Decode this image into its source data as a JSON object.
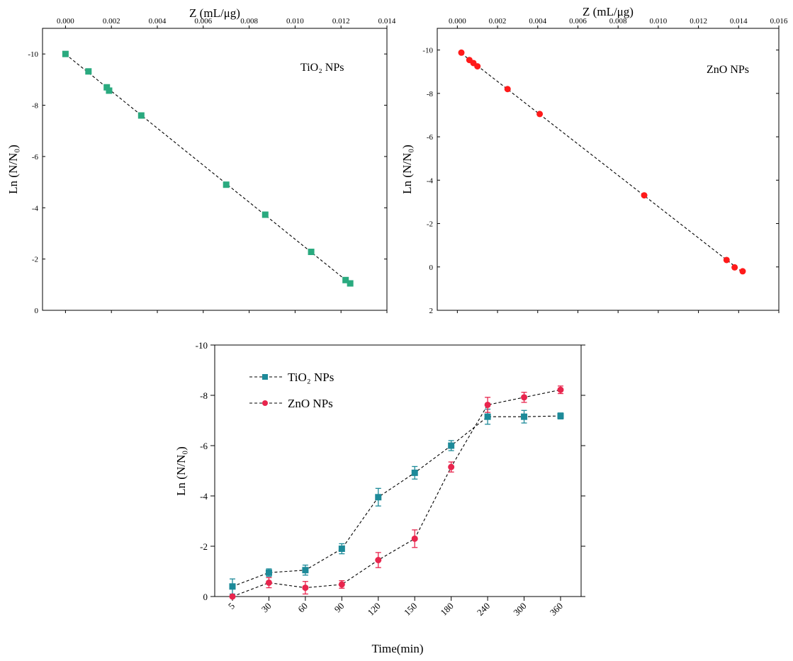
{
  "chart_data": [
    {
      "id": "tio2_scatter",
      "type": "scatter",
      "title": "",
      "panel_label": "TiO₂ NPs",
      "xlabel": "Z (mL/μg)",
      "ylabel": "Ln (N/N₀)",
      "x_axis_position": "top",
      "xlim": [
        -0.001,
        0.014
      ],
      "ylim": [
        0,
        -11
      ],
      "x_ticks": [
        0.0,
        0.002,
        0.004,
        0.006,
        0.008,
        0.01,
        0.012,
        0.014
      ],
      "x_tick_labels": [
        "0.000",
        "0.002",
        "0.004",
        "0.006",
        "0.008",
        "0.010",
        "0.012",
        "0.014"
      ],
      "y_ticks": [
        0,
        -2,
        -4,
        -6,
        -8,
        -10
      ],
      "y_tick_labels": [
        "0",
        "-2",
        "-4",
        "-6",
        "-8",
        "-10"
      ],
      "marker": "square",
      "color": "#2AAA7F",
      "fit_line": true,
      "x": [
        0.0,
        0.001,
        0.0018,
        0.0019,
        0.0033,
        0.007,
        0.0087,
        0.0107,
        0.0122,
        0.0124
      ],
      "y": [
        -10.0,
        -9.32,
        -8.7,
        -8.57,
        -7.6,
        -4.9,
        -3.73,
        -2.28,
        -1.18,
        -1.05
      ]
    },
    {
      "id": "zno_scatter",
      "type": "scatter",
      "title": "",
      "panel_label": "ZnO NPs",
      "xlabel": "Z (mL/μg)",
      "ylabel": "Ln (N/N₀)",
      "x_axis_position": "top",
      "xlim": [
        -0.001,
        0.016
      ],
      "ylim": [
        2,
        -11
      ],
      "x_ticks": [
        0.0,
        0.002,
        0.004,
        0.006,
        0.008,
        0.01,
        0.012,
        0.014,
        0.016
      ],
      "x_tick_labels": [
        "0.000",
        "0.002",
        "0.004",
        "0.006",
        "0.008",
        "0.010",
        "0.012",
        "0.014",
        "0.016"
      ],
      "y_ticks": [
        2,
        0,
        -2,
        -4,
        -6,
        -8,
        -10
      ],
      "y_tick_labels": [
        "2",
        "0",
        "-2",
        "-4",
        "-6",
        "-8",
        "-10"
      ],
      "marker": "circle",
      "color": "#FF1A1A",
      "fit_line": true,
      "x": [
        0.0002,
        0.0006,
        0.0008,
        0.001,
        0.0025,
        0.0041,
        0.0093,
        0.0134,
        0.0138,
        0.0142
      ],
      "y": [
        -9.88,
        -9.54,
        -9.4,
        -9.25,
        -8.2,
        -7.05,
        -3.3,
        -0.32,
        0.02,
        0.2
      ]
    },
    {
      "id": "time_series",
      "type": "line",
      "title": "",
      "xlabel": "Time(min)",
      "ylabel": "Ln (N/N₀)",
      "categories": [
        "5",
        "30",
        "60",
        "90",
        "120",
        "150",
        "180",
        "240",
        "300",
        "360"
      ],
      "ylim": [
        0,
        -10
      ],
      "y_ticks": [
        0,
        -2,
        -4,
        -6,
        -8,
        -10
      ],
      "y_tick_labels": [
        "0",
        "-2",
        "-4",
        "-6",
        "-8",
        "-10"
      ],
      "legend_position": "top-left",
      "series": [
        {
          "name": "TiO₂ NPs",
          "marker": "square",
          "color": "#1D8A99",
          "values": [
            -0.4,
            -0.95,
            -1.05,
            -1.9,
            -3.95,
            -4.92,
            -6.0,
            -7.15,
            -7.15,
            -7.18
          ],
          "errors": [
            0.3,
            0.15,
            0.2,
            0.2,
            0.35,
            0.25,
            0.2,
            0.3,
            0.25,
            0.12
          ]
        },
        {
          "name": "ZnO NPs",
          "marker": "circle",
          "color": "#E8254D",
          "values": [
            0.0,
            -0.55,
            -0.35,
            -0.48,
            -1.45,
            -2.3,
            -5.15,
            -7.62,
            -7.92,
            -8.22
          ],
          "errors": [
            0.05,
            0.2,
            0.25,
            0.15,
            0.3,
            0.35,
            0.2,
            0.3,
            0.2,
            0.15
          ]
        }
      ]
    }
  ]
}
